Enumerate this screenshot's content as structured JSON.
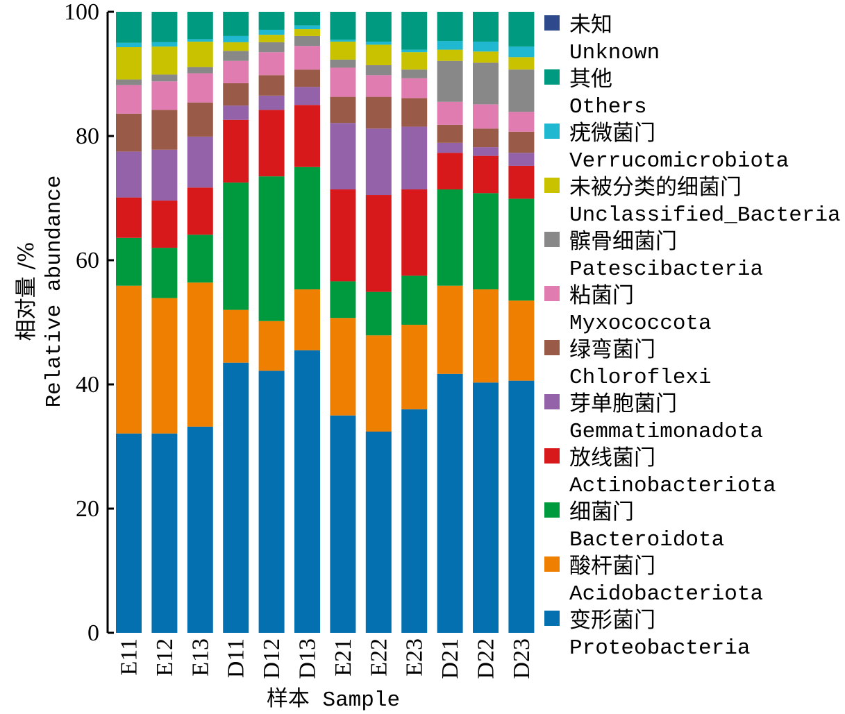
{
  "chart_data": {
    "type": "bar",
    "stacked": true,
    "title": "",
    "xlabel": "样本 Sample",
    "ylabel_cn": "相对量 /%",
    "ylabel": "Relative abundance",
    "ylim": [
      0,
      100
    ],
    "yticks": [
      0,
      20,
      40,
      60,
      80,
      100
    ],
    "legend_position": "right",
    "categories": [
      "E11",
      "E12",
      "E13",
      "D11",
      "D12",
      "D13",
      "E21",
      "E22",
      "E23",
      "D21",
      "D22",
      "D23"
    ],
    "series": [
      {
        "name_cn": "变形菌门",
        "name": "Proteobacteria",
        "color": "#0570b0",
        "values": [
          32.1,
          32.1,
          33.2,
          43.5,
          42.2,
          45.5,
          35.0,
          32.4,
          36.0,
          41.7,
          40.3,
          40.6
        ]
      },
      {
        "name_cn": "酸杆菌门",
        "name": "Acidobacteriota",
        "color": "#ef7f00",
        "values": [
          23.8,
          21.8,
          23.2,
          8.5,
          8.0,
          9.8,
          15.7,
          15.5,
          13.6,
          14.2,
          15.0,
          12.9
        ]
      },
      {
        "name_cn": "细菌门",
        "name": "Bacteroidota",
        "color": "#009a3e",
        "values": [
          7.7,
          8.1,
          7.7,
          20.5,
          23.3,
          19.7,
          5.9,
          7.0,
          7.9,
          15.5,
          15.5,
          16.4
        ]
      },
      {
        "name_cn": "放线菌门",
        "name": "Actinobacteriota",
        "color": "#d7191c",
        "values": [
          6.5,
          7.6,
          7.6,
          10.1,
          10.7,
          10.0,
          14.8,
          15.6,
          13.9,
          5.9,
          6.0,
          5.3
        ]
      },
      {
        "name_cn": "芽单胞菌门",
        "name": "Gemmatimonadota",
        "color": "#9462a8",
        "values": [
          7.4,
          8.2,
          8.2,
          2.3,
          2.3,
          2.9,
          10.7,
          10.7,
          10.1,
          1.6,
          1.4,
          2.1
        ]
      },
      {
        "name_cn": "绿弯菌门",
        "name": "Chloroflexi",
        "color": "#9a5a48",
        "values": [
          6.1,
          6.4,
          5.5,
          3.6,
          3.3,
          2.8,
          4.2,
          5.1,
          4.6,
          2.9,
          3.0,
          3.4
        ]
      },
      {
        "name_cn": "粘菌门",
        "name": "Myxococcota",
        "color": "#e07cb0",
        "values": [
          4.6,
          4.6,
          4.7,
          3.6,
          3.7,
          3.8,
          4.7,
          3.5,
          3.2,
          3.7,
          3.9,
          3.2
        ]
      },
      {
        "name_cn": "髌骨细菌门",
        "name": "Patescibacteria",
        "color": "#888888",
        "values": [
          0.9,
          1.1,
          1.0,
          1.6,
          1.6,
          1.6,
          1.3,
          1.6,
          1.4,
          6.6,
          6.7,
          6.8
        ]
      },
      {
        "name_cn": "未被分类的细菌门",
        "name": "Unclassified_Bacteria",
        "color": "#c8c200",
        "values": [
          5.2,
          4.5,
          4.1,
          1.4,
          1.2,
          1.1,
          2.9,
          3.3,
          2.8,
          1.8,
          1.8,
          2.0
        ]
      },
      {
        "name_cn": "疣微菌门",
        "name": "Verrucomicrobiota",
        "color": "#20b8d0",
        "values": [
          0.7,
          0.7,
          0.4,
          1.0,
          0.8,
          0.6,
          0.3,
          0.5,
          0.4,
          1.4,
          1.6,
          1.7
        ]
      },
      {
        "name_cn": "其他",
        "name": "Others",
        "color": "#009a80",
        "values": [
          5.0,
          4.9,
          4.4,
          3.9,
          2.9,
          2.2,
          4.5,
          4.8,
          6.1,
          4.7,
          4.8,
          5.6
        ]
      },
      {
        "name_cn": "未知",
        "name": "Unknown",
        "color": "#2e4a8c",
        "values": [
          0,
          0,
          0,
          0,
          0,
          0,
          0,
          0,
          0,
          0,
          0,
          0
        ]
      }
    ]
  }
}
